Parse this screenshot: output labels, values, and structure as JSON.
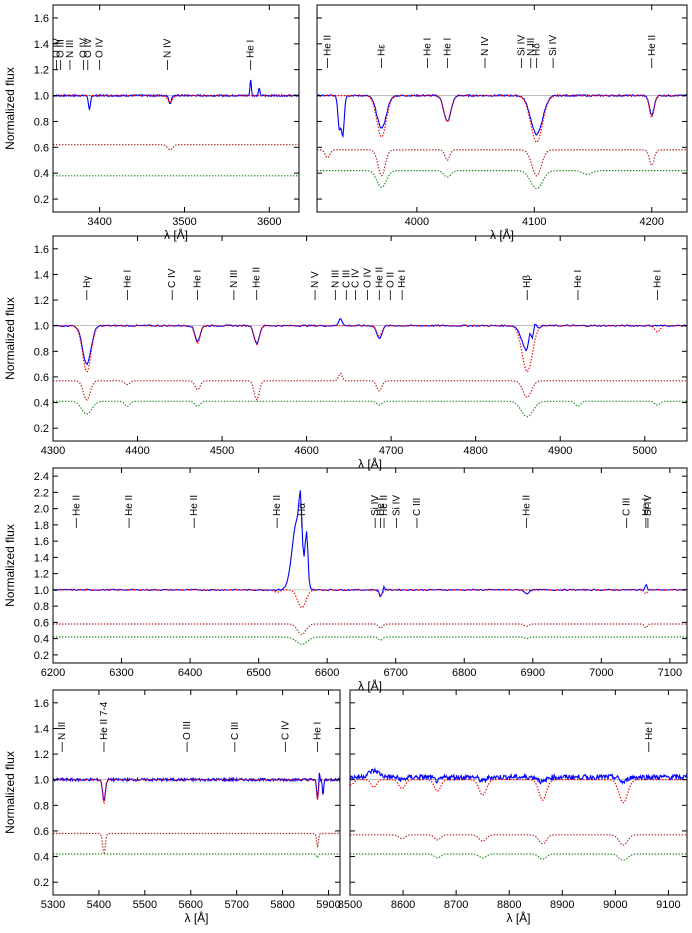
{
  "figure": {
    "ylabel": "Normalized flux",
    "xlabel": "λ [Å]"
  },
  "chart_data": [
    {
      "id": "p1",
      "type": "line",
      "xlabel": "λ [Å]",
      "ylabel": "Normalized flux",
      "xlim": [
        3345,
        3635
      ],
      "ylim": [
        0.1,
        1.7
      ],
      "xticks": [
        3400,
        3500,
        3600
      ],
      "yticks": [
        0.2,
        0.4,
        0.6,
        0.8,
        1.0,
        1.2,
        1.4,
        1.6
      ],
      "lines": [
        {
          "label": "O IV",
          "x": 3349
        },
        {
          "label": "O III",
          "x": 3354
        },
        {
          "label": "N III",
          "x": 3365
        },
        {
          "label": "O IV",
          "x": 3381
        },
        {
          "label": "O IV",
          "x": 3386
        },
        {
          "label": "O IV",
          "x": 3400
        },
        {
          "label": "N IV",
          "x": 3480
        },
        {
          "label": "He I",
          "x": 3578
        }
      ],
      "series": [
        {
          "name": "observed",
          "color": "#0000ff",
          "base": 1.0,
          "noise": 0.006,
          "features": [
            [
              3388,
              -0.11,
              1.2
            ],
            [
              3483,
              -0.06,
              1.5
            ],
            [
              3578,
              0.12,
              0.8
            ],
            [
              3588,
              0.06,
              0.8
            ]
          ]
        },
        {
          "name": "model",
          "color": "#ff0000",
          "base": 1.0,
          "noise": 0,
          "features": [
            [
              3483,
              -0.05,
              3
            ]
          ]
        },
        {
          "name": "component 1",
          "color": "#b22222",
          "base": 0.62,
          "noise": 0,
          "features": [
            [
              3483,
              -0.04,
              3
            ]
          ]
        },
        {
          "name": "component 2",
          "color": "#228b22",
          "base": 0.38,
          "noise": 0,
          "features": []
        }
      ]
    },
    {
      "id": "p2",
      "type": "line",
      "xlabel": "λ [Å]",
      "ylabel": "",
      "xlim": [
        3915,
        4230
      ],
      "ylim": [
        0.1,
        1.7
      ],
      "xticks": [
        4000,
        4100,
        4200
      ],
      "yticks": [
        0.2,
        0.4,
        0.6,
        0.8,
        1.0,
        1.2,
        1.4,
        1.6
      ],
      "lines": [
        {
          "label": "He II",
          "x": 3924
        },
        {
          "label": "Hε",
          "x": 3970
        },
        {
          "label": "He I",
          "x": 4009
        },
        {
          "label": "He I",
          "x": 4026
        },
        {
          "label": "N IV",
          "x": 4058
        },
        {
          "label": "Si IV",
          "x": 4089
        },
        {
          "label": "N III",
          "x": 4097
        },
        {
          "label": "Hδ",
          "x": 4102
        },
        {
          "label": "Si IV",
          "x": 4116
        },
        {
          "label": "He II",
          "x": 4200
        }
      ],
      "series": [
        {
          "name": "observed",
          "color": "#0000ff",
          "base": 1.0,
          "noise": 0.006,
          "features": [
            [
              3934,
              -0.25,
              1.2
            ],
            [
              3937,
              -0.3,
              1.2
            ],
            [
              3970,
              -0.25,
              4
            ],
            [
              4026,
              -0.2,
              3
            ],
            [
              4102,
              -0.3,
              5
            ],
            [
              4200,
              -0.15,
              2
            ]
          ]
        },
        {
          "name": "model",
          "color": "#ff0000",
          "base": 1.0,
          "noise": 0,
          "features": [
            [
              3970,
              -0.32,
              4
            ],
            [
              4026,
              -0.2,
              3
            ],
            [
              4102,
              -0.36,
              5
            ],
            [
              4200,
              -0.17,
              2
            ]
          ]
        },
        {
          "name": "component 1",
          "color": "#b22222",
          "base": 0.58,
          "noise": 0,
          "features": [
            [
              3924,
              -0.06,
              2
            ],
            [
              3970,
              -0.2,
              3
            ],
            [
              4026,
              -0.08,
              2
            ],
            [
              4102,
              -0.2,
              4
            ],
            [
              4200,
              -0.12,
              2
            ]
          ]
        },
        {
          "name": "component 2",
          "color": "#228b22",
          "base": 0.42,
          "noise": 0,
          "features": [
            [
              3970,
              -0.13,
              4
            ],
            [
              4026,
              -0.05,
              3
            ],
            [
              4102,
              -0.14,
              5
            ],
            [
              4145,
              -0.03,
              4
            ]
          ]
        }
      ]
    },
    {
      "id": "p3",
      "type": "line",
      "xlabel": "λ [Å]",
      "ylabel": "Normalized flux",
      "xlim": [
        4300,
        5050
      ],
      "ylim": [
        0.1,
        1.7
      ],
      "xticks": [
        4300,
        4400,
        4500,
        4600,
        4700,
        4800,
        4900,
        5000
      ],
      "yticks": [
        0.2,
        0.4,
        0.6,
        0.8,
        1.0,
        1.2,
        1.4,
        1.6
      ],
      "lines": [
        {
          "label": "Hγ",
          "x": 4340
        },
        {
          "label": "He I",
          "x": 4388
        },
        {
          "label": "C IV",
          "x": 4441
        },
        {
          "label": "He I",
          "x": 4471
        },
        {
          "label": "N III",
          "x": 4514
        },
        {
          "label": "He II",
          "x": 4541
        },
        {
          "label": "N V",
          "x": 4610
        },
        {
          "label": "N III",
          "x": 4634
        },
        {
          "label": "C III",
          "x": 4647
        },
        {
          "label": "C IV",
          "x": 4658
        },
        {
          "label": "O IV",
          "x": 4672
        },
        {
          "label": "He II",
          "x": 4686
        },
        {
          "label": "O II",
          "x": 4699
        },
        {
          "label": "He I",
          "x": 4713
        },
        {
          "label": "Hβ",
          "x": 4861
        },
        {
          "label": "He I",
          "x": 4921
        },
        {
          "label": "He I",
          "x": 5015
        }
      ],
      "series": [
        {
          "name": "observed",
          "color": "#0000ff",
          "base": 1.0,
          "noise": 0.006,
          "features": [
            [
              4340,
              -0.3,
              5
            ],
            [
              4471,
              -0.12,
              3
            ],
            [
              4541,
              -0.14,
              3
            ],
            [
              4640,
              0.06,
              2
            ],
            [
              4686,
              -0.1,
              3
            ],
            [
              4861,
              -0.2,
              6
            ],
            [
              4864,
              0.12,
              1.5
            ],
            [
              4870,
              0.08,
              1.5
            ]
          ]
        },
        {
          "name": "model",
          "color": "#ff0000",
          "base": 1.0,
          "noise": 0,
          "features": [
            [
              4340,
              -0.36,
              5
            ],
            [
              4471,
              -0.14,
              3
            ],
            [
              4541,
              -0.15,
              3
            ],
            [
              4686,
              -0.08,
              3
            ],
            [
              4861,
              -0.36,
              6
            ],
            [
              5015,
              -0.05,
              3
            ]
          ]
        },
        {
          "name": "component 1",
          "color": "#b22222",
          "base": 0.57,
          "noise": 0,
          "features": [
            [
              4340,
              -0.15,
              4
            ],
            [
              4388,
              -0.03,
              3
            ],
            [
              4471,
              -0.07,
              3
            ],
            [
              4541,
              -0.15,
              3
            ],
            [
              4640,
              0.06,
              2
            ],
            [
              4686,
              -0.08,
              3
            ],
            [
              4861,
              -0.13,
              5
            ]
          ]
        },
        {
          "name": "component 2",
          "color": "#228b22",
          "base": 0.41,
          "noise": 0,
          "features": [
            [
              4340,
              -0.1,
              6
            ],
            [
              4388,
              -0.04,
              3
            ],
            [
              4471,
              -0.04,
              3
            ],
            [
              4686,
              -0.03,
              3
            ],
            [
              4861,
              -0.12,
              7
            ],
            [
              4921,
              -0.04,
              3
            ],
            [
              5015,
              -0.03,
              3
            ]
          ]
        }
      ]
    },
    {
      "id": "p4",
      "type": "line",
      "xlabel": "λ [Å]",
      "ylabel": "Normalized flux",
      "xlim": [
        6200,
        7125
      ],
      "ylim": [
        0.1,
        2.5
      ],
      "xticks": [
        6200,
        6300,
        6400,
        6500,
        6600,
        6700,
        6800,
        6900,
        7000,
        7100
      ],
      "yticks": [
        0.2,
        0.4,
        0.6,
        0.8,
        1.0,
        1.2,
        1.4,
        1.6,
        1.8,
        2.0,
        2.2,
        2.4
      ],
      "lines": [
        {
          "label": "He II",
          "x": 6234
        },
        {
          "label": "He II",
          "x": 6311
        },
        {
          "label": "He II",
          "x": 6406
        },
        {
          "label": "He II",
          "x": 6527
        },
        {
          "label": "Hα",
          "x": 6563
        },
        {
          "label": "Si IV",
          "x": 6670
        },
        {
          "label": "He I",
          "x": 6678
        },
        {
          "label": "He II",
          "x": 6683
        },
        {
          "label": "Si IV",
          "x": 6701
        },
        {
          "label": "C III",
          "x": 6731
        },
        {
          "label": "He II",
          "x": 6891
        },
        {
          "label": "Si IV",
          "x": 7068
        },
        {
          "label": "C III",
          "x": 7037
        },
        {
          "label": "He I",
          "x": 7065
        }
      ],
      "series": [
        {
          "name": "observed",
          "color": "#0000ff",
          "base": 1.0,
          "noise": 0.008,
          "features": [
            [
              6556,
              0.85,
              7
            ],
            [
              6561,
              0.55,
              2
            ],
            [
              6570,
              0.6,
              2
            ],
            [
              6678,
              -0.08,
              2
            ],
            [
              6683,
              0.05,
              1
            ],
            [
              6891,
              -0.05,
              3
            ],
            [
              7065,
              0.07,
              1.5
            ]
          ]
        },
        {
          "name": "model",
          "color": "#ff0000",
          "base": 1.0,
          "noise": 0,
          "features": [
            [
              6527,
              -0.03,
              4
            ],
            [
              6563,
              -0.22,
              6
            ],
            [
              6678,
              -0.06,
              3
            ],
            [
              7065,
              -0.05,
              2
            ]
          ]
        },
        {
          "name": "component 1",
          "color": "#b22222",
          "base": 0.58,
          "noise": 0,
          "features": [
            [
              6563,
              -0.13,
              6
            ],
            [
              6678,
              -0.05,
              3
            ],
            [
              6891,
              -0.03,
              3
            ],
            [
              7065,
              -0.05,
              2
            ]
          ]
        },
        {
          "name": "component 2",
          "color": "#228b22",
          "base": 0.42,
          "noise": 0,
          "features": [
            [
              6563,
              -0.09,
              8
            ],
            [
              6678,
              -0.04,
              3
            ],
            [
              6891,
              -0.02,
              3
            ]
          ]
        }
      ]
    },
    {
      "id": "p5",
      "type": "line",
      "xlabel": "λ [Å]",
      "ylabel": "Normalized flux",
      "xlim": [
        5300,
        5925
      ],
      "ylim": [
        0.1,
        1.7
      ],
      "xticks": [
        5300,
        5400,
        5500,
        5600,
        5700,
        5800,
        5900
      ],
      "yticks": [
        0.2,
        0.4,
        0.6,
        0.8,
        1.0,
        1.2,
        1.4,
        1.6
      ],
      "lines": [
        {
          "label": "N III",
          "x": 5320
        },
        {
          "label": "He II 7-4",
          "x": 5411
        },
        {
          "label": "O III",
          "x": 5592
        },
        {
          "label": "C III",
          "x": 5696
        },
        {
          "label": "C IV",
          "x": 5806
        },
        {
          "label": "He I",
          "x": 5876
        }
      ],
      "series": [
        {
          "name": "observed",
          "color": "#0000ff",
          "base": 1.0,
          "noise": 0.01,
          "features": [
            [
              5411,
              -0.16,
              3
            ],
            [
              5876,
              -0.14,
              2
            ],
            [
              5880,
              0.08,
              1
            ],
            [
              5888,
              -0.12,
              1.5
            ]
          ]
        },
        {
          "name": "model",
          "color": "#ff0000",
          "base": 1.0,
          "noise": 0,
          "features": [
            [
              5411,
              -0.18,
              3
            ],
            [
              5876,
              -0.16,
              2
            ]
          ]
        },
        {
          "name": "component 1",
          "color": "#b22222",
          "base": 0.58,
          "noise": 0,
          "features": [
            [
              5411,
              -0.15,
              3
            ],
            [
              5876,
              -0.1,
              2
            ]
          ]
        },
        {
          "name": "component 2",
          "color": "#228b22",
          "base": 0.42,
          "noise": 0,
          "features": [
            [
              5876,
              -0.03,
              2
            ]
          ]
        }
      ]
    },
    {
      "id": "p6",
      "type": "line",
      "xlabel": "λ [Å]",
      "ylabel": "",
      "xlim": [
        8500,
        9135
      ],
      "ylim": [
        0.1,
        1.7
      ],
      "xticks": [
        8500,
        8600,
        8700,
        8800,
        8900,
        9000,
        9100
      ],
      "yticks": [
        0.2,
        0.4,
        0.6,
        0.8,
        1.0,
        1.2,
        1.4,
        1.6
      ],
      "lines": [
        {
          "label": "He I",
          "x": 9063
        }
      ],
      "series": [
        {
          "name": "observed",
          "color": "#0000ff",
          "base": 1.02,
          "noise": 0.02,
          "features": [
            [
              8545,
              0.05,
              10
            ],
            [
              8598,
              -0.02,
              6
            ],
            [
              8665,
              -0.03,
              6
            ],
            [
              8750,
              -0.03,
              6
            ],
            [
              8863,
              -0.04,
              6
            ],
            [
              9015,
              -0.04,
              6
            ]
          ]
        },
        {
          "name": "model",
          "color": "#ff0000",
          "base": 1.0,
          "noise": 0,
          "features": [
            [
              8502,
              -0.04,
              5
            ],
            [
              8545,
              -0.06,
              5
            ],
            [
              8598,
              -0.07,
              6
            ],
            [
              8665,
              -0.09,
              6
            ],
            [
              8750,
              -0.12,
              7
            ],
            [
              8863,
              -0.16,
              7
            ],
            [
              9015,
              -0.18,
              8
            ]
          ]
        },
        {
          "name": "component 1",
          "color": "#b22222",
          "base": 0.57,
          "noise": 0,
          "features": [
            [
              8598,
              -0.03,
              6
            ],
            [
              8665,
              -0.04,
              6
            ],
            [
              8750,
              -0.05,
              7
            ],
            [
              8863,
              -0.07,
              7
            ],
            [
              9015,
              -0.08,
              8
            ]
          ]
        },
        {
          "name": "component 2",
          "color": "#228b22",
          "base": 0.42,
          "noise": 0,
          "features": [
            [
              8665,
              -0.03,
              6
            ],
            [
              8750,
              -0.03,
              7
            ],
            [
              8863,
              -0.04,
              7
            ],
            [
              9015,
              -0.05,
              8
            ]
          ]
        }
      ]
    }
  ]
}
